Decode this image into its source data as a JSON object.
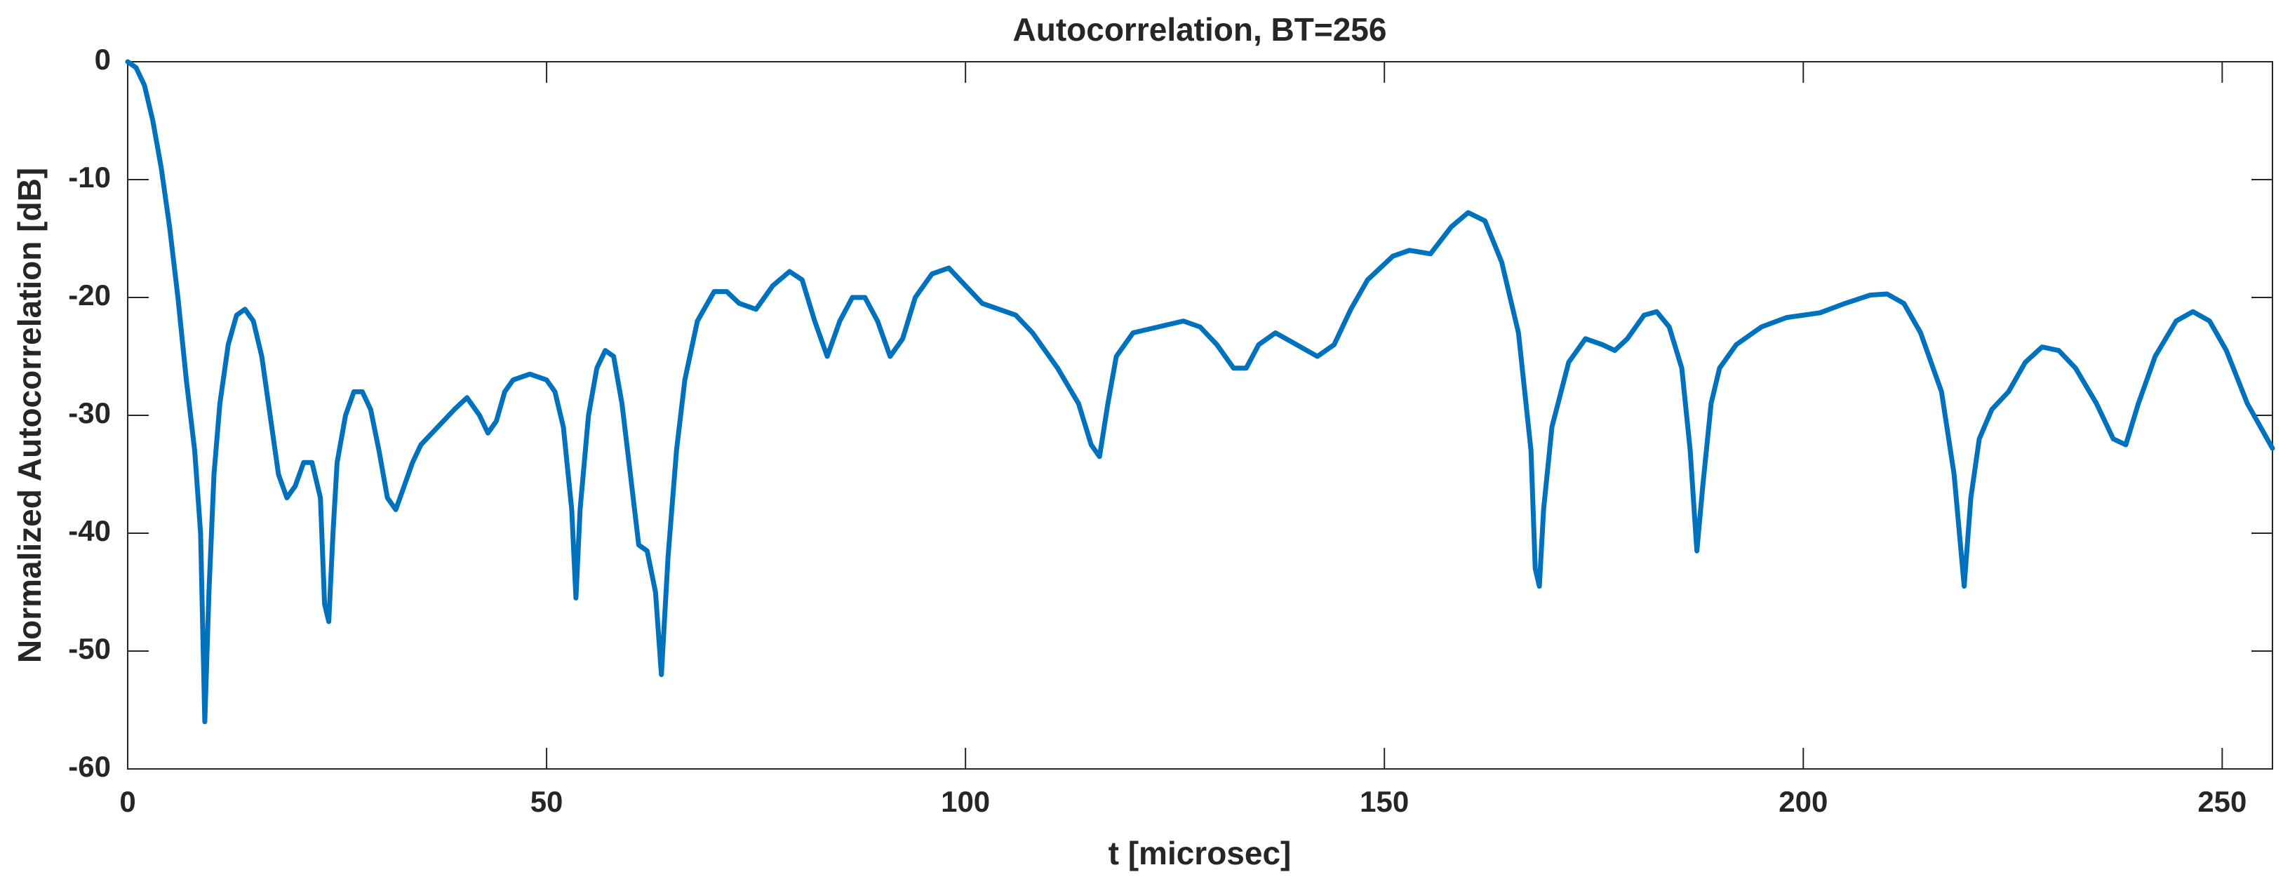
{
  "chart_data": {
    "type": "line",
    "title": "Autocorrelation, BT=256",
    "xlabel": "t [microsec]",
    "ylabel": "Normalized Autocorrelation [dB]",
    "xlim": [
      0,
      256
    ],
    "ylim": [
      -60,
      0
    ],
    "xticks": [
      0,
      50,
      100,
      150,
      200,
      250
    ],
    "yticks": [
      -60,
      -50,
      -40,
      -30,
      -20,
      -10,
      0
    ],
    "grid": false,
    "x": [
      0,
      1,
      2,
      3,
      4,
      5,
      6,
      7,
      8,
      8.7,
      9.2,
      9.7,
      10.3,
      11,
      12,
      13,
      14,
      15,
      16,
      17,
      18,
      19,
      20,
      21,
      22,
      23,
      23.5,
      24,
      24.5,
      25,
      26,
      27,
      28,
      29,
      30,
      31,
      32,
      33,
      34,
      35,
      37,
      39,
      40.5,
      42,
      43,
      44,
      45,
      46,
      48,
      50,
      51,
      52,
      53,
      53.5,
      54,
      55,
      56,
      57,
      58,
      59,
      60,
      61,
      62,
      63,
      63.7,
      64.5,
      65.5,
      66.5,
      68,
      70,
      71.5,
      73,
      75,
      77,
      79,
      80.5,
      82,
      83.5,
      85,
      86.5,
      88,
      89.5,
      91,
      92.5,
      94,
      96,
      98,
      100,
      102,
      106,
      108,
      111,
      113.5,
      115,
      116,
      117,
      118,
      120,
      123,
      126,
      128,
      130,
      132,
      133.5,
      135,
      137,
      139,
      142,
      144,
      146,
      148,
      151,
      153,
      155.5,
      158,
      160,
      162,
      164,
      166,
      167.5,
      168,
      168.5,
      169,
      170,
      172,
      174,
      176,
      177.5,
      179,
      181,
      182.5,
      184,
      185.5,
      186.5,
      187.3,
      188,
      189,
      190,
      192,
      195,
      198,
      202,
      205,
      208,
      210,
      212,
      214,
      216.5,
      218,
      219.2,
      220,
      221,
      222.5,
      224.5,
      226.5,
      228.5,
      230.5,
      232.5,
      235,
      237,
      238.5,
      240,
      242,
      244.5,
      246.5,
      248.5,
      250.5,
      253,
      256
    ],
    "series": [
      {
        "color": "#0072bd",
        "values": [
          0,
          -0.5,
          -2,
          -5,
          -9,
          -14,
          -20,
          -27,
          -33,
          -40,
          -56,
          -45,
          -35,
          -29,
          -24,
          -21.5,
          -21,
          -22,
          -25,
          -30,
          -35,
          -37,
          -36,
          -34,
          -34,
          -37,
          -46,
          -47.5,
          -40,
          -34,
          -30,
          -28,
          -28,
          -29.5,
          -33,
          -37,
          -38,
          -36,
          -34,
          -32.5,
          -31,
          -29.5,
          -28.5,
          -30,
          -31.5,
          -30.5,
          -28,
          -27,
          -26.5,
          -27,
          -28,
          -31,
          -38,
          -45.5,
          -38,
          -30,
          -26,
          -24.5,
          -25,
          -29,
          -35,
          -41,
          -41.5,
          -45,
          -52,
          -42,
          -33,
          -27,
          -22,
          -19.5,
          -19.5,
          -20.5,
          -21,
          -19,
          -17.8,
          -18.5,
          -22,
          -25,
          -22,
          -20,
          -20,
          -22,
          -25,
          -23.5,
          -20,
          -18,
          -17.5,
          -19,
          -20.5,
          -21.5,
          -23,
          -26,
          -29,
          -32.5,
          -33.5,
          -29,
          -25,
          -23,
          -22.5,
          -22,
          -22.5,
          -24,
          -26,
          -26,
          -24,
          -23,
          -23.8,
          -25,
          -24,
          -21,
          -18.5,
          -16.5,
          -16,
          -16.3,
          -14,
          -12.8,
          -13.5,
          -17,
          -23,
          -33,
          -43,
          -44.5,
          -38,
          -31,
          -25.5,
          -23.5,
          -24,
          -24.5,
          -23.5,
          -21.5,
          -21.2,
          -22.5,
          -26,
          -33,
          -41.5,
          -36,
          -29,
          -26,
          -24,
          -22.5,
          -21.7,
          -21.3,
          -20.5,
          -19.8,
          -19.7,
          -20.5,
          -23,
          -28,
          -35,
          -44.5,
          -37,
          -32,
          -29.5,
          -28,
          -25.5,
          -24.2,
          -24.5,
          -26,
          -29,
          -32,
          -32.5,
          -29,
          -25,
          -22,
          -21.2,
          -22,
          -24.5,
          -29,
          -32.8
        ]
      }
    ]
  }
}
